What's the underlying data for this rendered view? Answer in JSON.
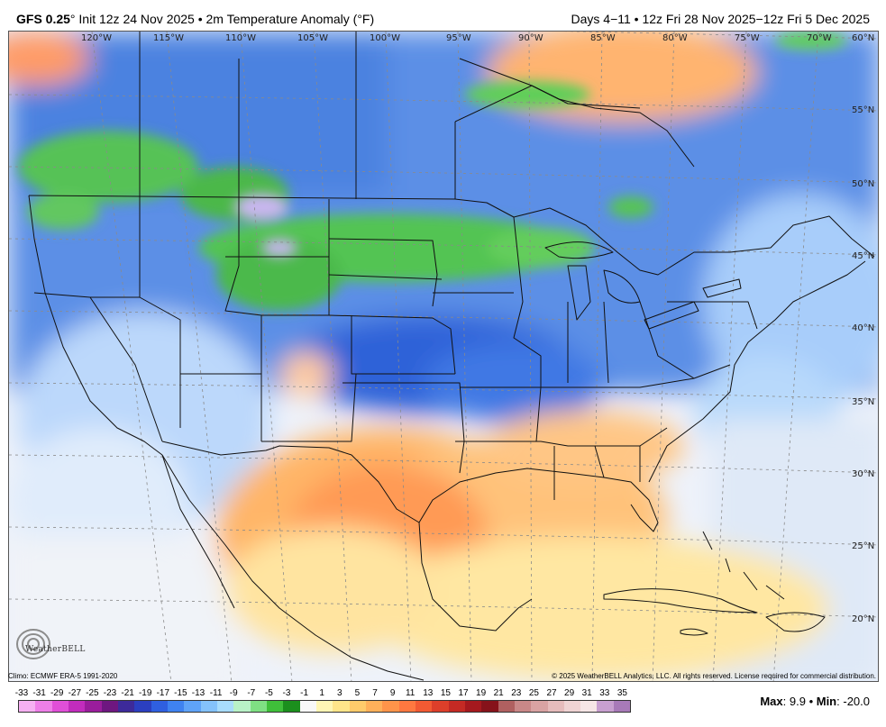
{
  "header": {
    "model": "GFS 0.25",
    "degree_mark": "°",
    "left_rest": " Init 12z 24 Nov 2025 • 2m Temperature Anomaly (°F)",
    "right": "Days 4−11 • 12z Fri 28 Nov 2025−12z Fri 5 Dec 2025"
  },
  "map": {
    "lon_labels": [
      "120°W",
      "115°W",
      "110°W",
      "105°W",
      "100°W",
      "95°W",
      "90°W",
      "85°W",
      "80°W",
      "75°W",
      "70°W"
    ],
    "lat_labels": [
      "60°N",
      "55°N",
      "50°N",
      "45°N",
      "40°N",
      "35°N",
      "30°N",
      "25°N",
      "20°N"
    ],
    "logo_text": "WeatherBELL"
  },
  "footer": {
    "climo": "Climo: ECMWF ERA-5 1991-2020",
    "copyright": "© 2025 WeatherBELL Analytics, LLC. All rights reserved. License required for commercial distribution."
  },
  "colorbar": {
    "ticks": [
      "-33",
      "-31",
      "-29",
      "-27",
      "-25",
      "-23",
      "-21",
      "-19",
      "-17",
      "-15",
      "-13",
      "-11",
      "-9",
      "-7",
      "-5",
      "-3",
      "-1",
      "1",
      "3",
      "5",
      "7",
      "9",
      "11",
      "13",
      "15",
      "17",
      "19",
      "21",
      "23",
      "25",
      "27",
      "29",
      "31",
      "33",
      "35"
    ],
    "colors": [
      "#f6b0f2",
      "#ee7fe8",
      "#e04fd8",
      "#c22cbd",
      "#9a1d9c",
      "#6e1780",
      "#3d2a9a",
      "#2b3fc0",
      "#2f5fe0",
      "#3f82f0",
      "#5fa3f7",
      "#84c2fb",
      "#a8dcfc",
      "#b9f2c7",
      "#7fe083",
      "#3fbf3a",
      "#1b8f1d",
      "#f8f8f8",
      "#fff6b5",
      "#ffe58a",
      "#ffcb6b",
      "#ffb05a",
      "#ff944a",
      "#ff7840",
      "#f25a33",
      "#dd3f2a",
      "#c42a24",
      "#a5191e",
      "#86121a",
      "#b06060",
      "#c98888",
      "#d9a3a3",
      "#e6bcbc",
      "#efd3d3",
      "#f6e6e6",
      "#c8a0d0",
      "#a87ab8"
    ]
  },
  "stats": {
    "max_label": "Max",
    "max_value": "9.9",
    "min_label": "Min",
    "min_value": "-20.0"
  }
}
